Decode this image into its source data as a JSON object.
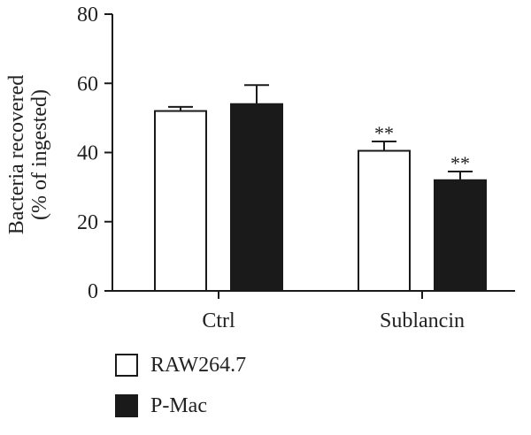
{
  "chart_data": {
    "type": "bar",
    "ylabel": [
      "Bacteria recovered",
      "(% of ingested)"
    ],
    "xlabel": "",
    "ylim": [
      0,
      80
    ],
    "yticks": [
      0,
      20,
      40,
      60,
      80
    ],
    "categories": [
      "Ctrl",
      "Sublancin"
    ],
    "series": [
      {
        "name": "RAW264.7",
        "fill": "#ffffff",
        "values": [
          52,
          40.5
        ],
        "errors": [
          1.2,
          2.7
        ],
        "significance": [
          "",
          "**"
        ]
      },
      {
        "name": "P-Mac",
        "fill": "#1a1a1a",
        "values": [
          54,
          32
        ],
        "errors": [
          5.5,
          2.5
        ],
        "significance": [
          "",
          "**"
        ]
      }
    ],
    "grid": false,
    "legend_position": "bottom-left"
  }
}
